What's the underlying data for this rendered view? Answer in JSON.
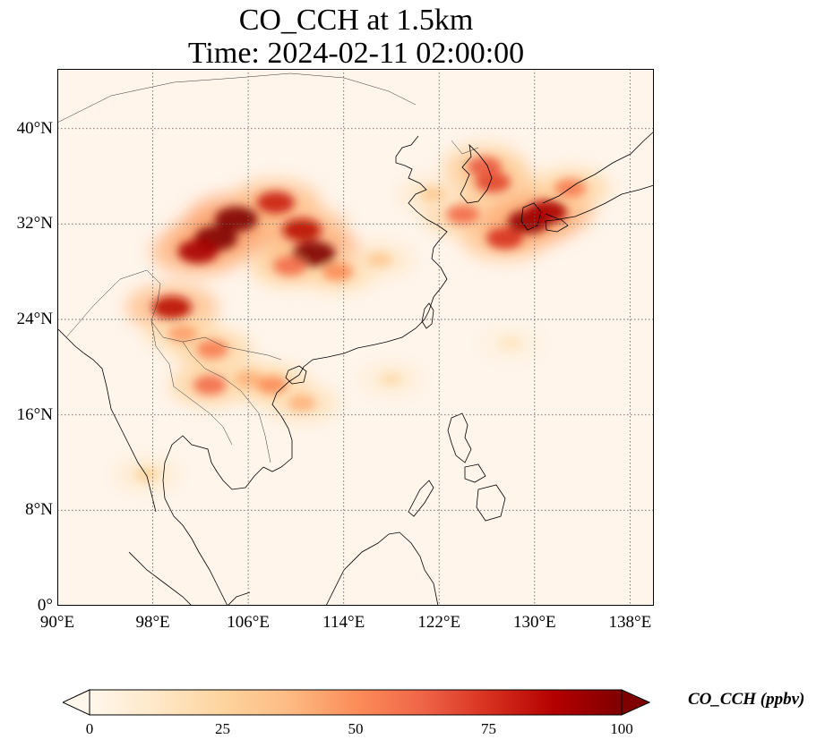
{
  "title": {
    "line1": "CO_CCH at 1.5km",
    "line2": "Time: 2024-02-11 02:00:00"
  },
  "map": {
    "projection": "PlateCarree",
    "extent_lon": [
      90,
      140
    ],
    "extent_lat": [
      0,
      45
    ],
    "gridlines": "dotted",
    "background_color": "#fff5eb",
    "coastline_color": "#000000",
    "lat_ticks": [
      {
        "value": 0,
        "label": "0°"
      },
      {
        "value": 8,
        "label": "8°N"
      },
      {
        "value": 16,
        "label": "16°N"
      },
      {
        "value": 24,
        "label": "24°N"
      },
      {
        "value": 32,
        "label": "32°N"
      },
      {
        "value": 40,
        "label": "40°N"
      }
    ],
    "lon_ticks": [
      {
        "value": 90,
        "label": "90°E"
      },
      {
        "value": 98,
        "label": "98°E"
      },
      {
        "value": 106,
        "label": "106°E"
      },
      {
        "value": 114,
        "label": "114°E"
      },
      {
        "value": 122,
        "label": "122°E"
      },
      {
        "value": 130,
        "label": "130°E"
      },
      {
        "value": 138,
        "label": "138°E"
      }
    ],
    "hotspots": [
      {
        "lon": 103.3,
        "lat": 30.8,
        "value": 100
      },
      {
        "lon": 105.0,
        "lat": 32.4,
        "value": 100
      },
      {
        "lon": 101.8,
        "lat": 29.7,
        "value": 90
      },
      {
        "lon": 111.5,
        "lat": 29.5,
        "value": 100
      },
      {
        "lon": 110.5,
        "lat": 31.5,
        "value": 85
      },
      {
        "lon": 108.3,
        "lat": 33.8,
        "value": 80
      },
      {
        "lon": 109.5,
        "lat": 28.5,
        "value": 60
      },
      {
        "lon": 113.5,
        "lat": 28.0,
        "value": 50
      },
      {
        "lon": 99.6,
        "lat": 25.0,
        "value": 85
      },
      {
        "lon": 100.5,
        "lat": 22.8,
        "value": 45
      },
      {
        "lon": 103.0,
        "lat": 21.5,
        "value": 55
      },
      {
        "lon": 102.8,
        "lat": 18.5,
        "value": 60
      },
      {
        "lon": 106.0,
        "lat": 19.0,
        "value": 40
      },
      {
        "lon": 108.0,
        "lat": 18.5,
        "value": 50
      },
      {
        "lon": 110.5,
        "lat": 17.0,
        "value": 40
      },
      {
        "lon": 126.5,
        "lat": 35.5,
        "value": 70
      },
      {
        "lon": 125.8,
        "lat": 36.8,
        "value": 65
      },
      {
        "lon": 124.0,
        "lat": 32.8,
        "value": 60
      },
      {
        "lon": 127.5,
        "lat": 30.8,
        "value": 75
      },
      {
        "lon": 129.5,
        "lat": 32.2,
        "value": 95
      },
      {
        "lon": 131.0,
        "lat": 33.0,
        "value": 90
      },
      {
        "lon": 133.0,
        "lat": 35.0,
        "value": 55
      },
      {
        "lon": 121.5,
        "lat": 34.5,
        "value": 30
      },
      {
        "lon": 117.0,
        "lat": 29.0,
        "value": 30
      },
      {
        "lon": 97.5,
        "lat": 11.0,
        "value": 25
      },
      {
        "lon": 118.0,
        "lat": 19.0,
        "value": 20
      },
      {
        "lon": 128.0,
        "lat": 22.0,
        "value": 15
      }
    ]
  },
  "colorbar": {
    "label": "CO_CCH (ppbv)",
    "min": 0,
    "max": 100,
    "extend": "both",
    "ticks": [
      {
        "value": 0,
        "label": "0"
      },
      {
        "value": 25,
        "label": "25"
      },
      {
        "value": 50,
        "label": "50"
      },
      {
        "value": 75,
        "label": "75"
      },
      {
        "value": 100,
        "label": "100"
      }
    ],
    "colormap": "OrRd",
    "colors": [
      "#fff7ec",
      "#fee8c8",
      "#fdd49e",
      "#fdbb84",
      "#fc8d59",
      "#ef6548",
      "#d7301f",
      "#b30000",
      "#7f0000"
    ]
  }
}
